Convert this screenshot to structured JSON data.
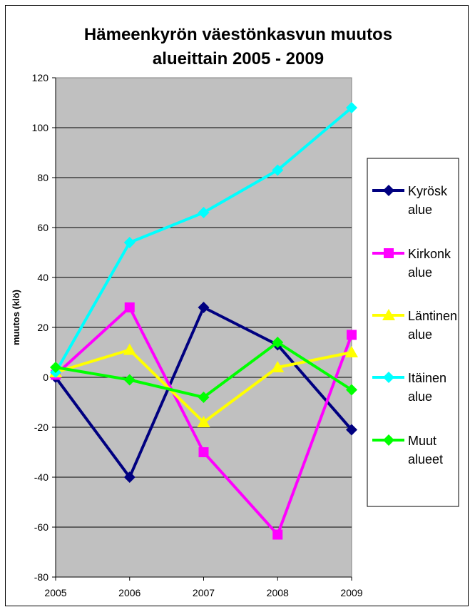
{
  "chart_data": {
    "type": "line",
    "title_lines": [
      "Hämeenkyrön väestönkasvun muutos",
      "alueittain 2005 - 2009"
    ],
    "xlabel": "",
    "ylabel": "muutos (klö)",
    "x": [
      "2005",
      "2006",
      "2007",
      "2008",
      "2009"
    ],
    "ylim": [
      -80,
      120
    ],
    "yticks": [
      -80,
      -60,
      -40,
      -20,
      0,
      20,
      40,
      60,
      80,
      100,
      120
    ],
    "grid": true,
    "legend_position": "right",
    "plot_background": "#c0c0c0",
    "series": [
      {
        "name": "Kyrösk alue",
        "name_lines": [
          "Kyrösk",
          "alue"
        ],
        "color": "#000080",
        "marker": "diamond",
        "values": [
          0,
          -40,
          28,
          13,
          -21
        ]
      },
      {
        "name": "Kirkonk alue",
        "name_lines": [
          "Kirkonk",
          "alue"
        ],
        "color": "#ff00ff",
        "marker": "square",
        "values": [
          1,
          28,
          -30,
          -63,
          17
        ]
      },
      {
        "name": "Läntinen alue",
        "name_lines": [
          "Läntinen",
          "alue"
        ],
        "color": "#ffff00",
        "marker": "triangle",
        "values": [
          2,
          11,
          -18,
          4,
          10
        ]
      },
      {
        "name": "Itäinen alue",
        "name_lines": [
          "Itäinen",
          "alue"
        ],
        "color": "#00ffff",
        "marker": "diamond",
        "values": [
          2,
          54,
          66,
          83,
          108
        ]
      },
      {
        "name": "Muut alueet",
        "name_lines": [
          "Muut",
          "alueet"
        ],
        "color": "#00ff00",
        "marker": "diamond",
        "values": [
          4,
          -1,
          -8,
          14,
          -5
        ]
      }
    ]
  }
}
